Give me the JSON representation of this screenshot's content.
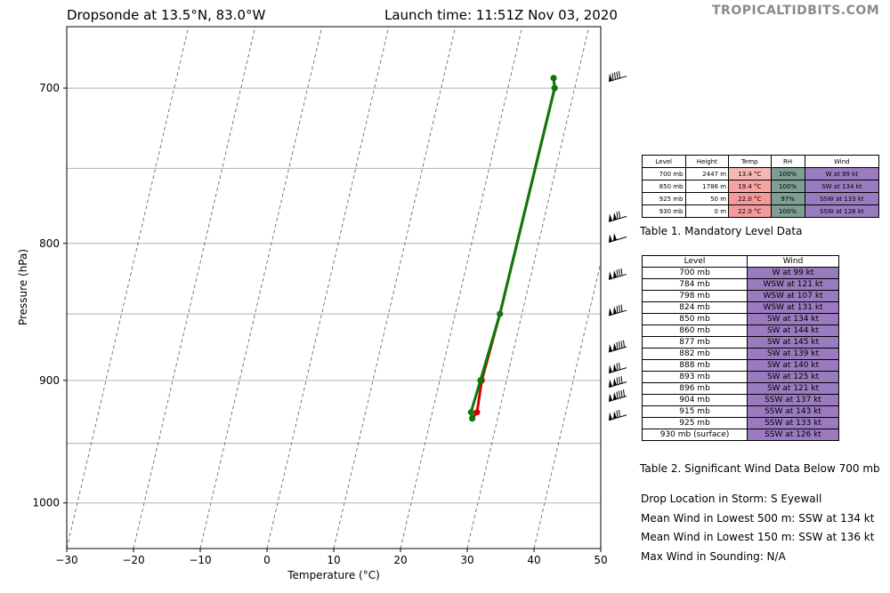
{
  "header": {
    "title_left": "Dropsonde at 13.5°N, 83.0°W",
    "title_right": "Launch time: 11:51Z Nov 03, 2020",
    "brand": "TROPICALTIDBITS.COM"
  },
  "chart_data": {
    "type": "line",
    "xlabel": "Temperature (°C)",
    "ylabel": "Pressure (hPa)",
    "xlim": [
      -30,
      50
    ],
    "ylim": [
      1040,
      664
    ],
    "y_scale": "log",
    "x_ticks": [
      -30,
      -20,
      -10,
      0,
      10,
      20,
      30,
      40,
      50
    ],
    "x_tick_labels": [
      "−30",
      "−20",
      "−10",
      "0",
      "10",
      "20",
      "30",
      "40",
      "50"
    ],
    "y_ticks": [
      700,
      800,
      900,
      1000
    ],
    "y_tick_labels": [
      "700",
      "800",
      "900",
      "1000"
    ],
    "grid_pressure": [
      700,
      750,
      800,
      850,
      900,
      950,
      1000
    ],
    "isotherms_skewed": [
      -30,
      -20,
      -10,
      0,
      10,
      20,
      30,
      40,
      50,
      60,
      70,
      80
    ],
    "series": [
      {
        "color": "#d40000",
        "points": [
          [
            26.5,
            694
          ],
          [
            27.0,
            700
          ],
          [
            26.7,
            850
          ],
          [
            26.3,
            900
          ],
          [
            26.7,
            925
          ],
          [
            26.2,
            930
          ]
        ]
      },
      {
        "color": "#0a7a0a",
        "points": [
          [
            26.5,
            694
          ],
          [
            27.0,
            700
          ],
          [
            26.7,
            850
          ],
          [
            26.1,
            900
          ],
          [
            25.8,
            925
          ],
          [
            26.2,
            930
          ]
        ]
      }
    ],
    "wind_barbs": [
      {
        "pressure": 695,
        "speed": 99
      },
      {
        "pressure": 784,
        "speed": 121
      },
      {
        "pressure": 798,
        "speed": 107
      },
      {
        "pressure": 824,
        "speed": 131
      },
      {
        "pressure": 850,
        "speed": 134
      },
      {
        "pressure": 877,
        "speed": 145
      },
      {
        "pressure": 893,
        "speed": 125
      },
      {
        "pressure": 904,
        "speed": 137
      },
      {
        "pressure": 915,
        "speed": 143
      },
      {
        "pressure": 930,
        "speed": 126
      }
    ]
  },
  "table1": {
    "caption": "Table 1. Mandatory Level Data",
    "headers": [
      "Level",
      "Height",
      "Temp",
      "RH",
      "Wind"
    ],
    "rows": [
      [
        "700 mb",
        "2447 m",
        "13.4 °C",
        "100%",
        "W at 99 kt"
      ],
      [
        "850 mb",
        "1786 m",
        "19.4 °C",
        "100%",
        "SW at 134 kt"
      ],
      [
        "925 mb",
        "50 m",
        "22.0 °C",
        "97%",
        "SSW at 133 kt"
      ],
      [
        "930 mb",
        "0 m",
        "22.0 °C",
        "100%",
        "SSW at 126 kt"
      ]
    ],
    "temp_colors": [
      "#f7b6b6",
      "#f7a3a3",
      "#f59a9a",
      "#f59a9a"
    ],
    "rh_color": "#7d9e94",
    "wind_color": "#9b7bbf"
  },
  "table2": {
    "caption": "Table 2. Significant Wind Data Below 700 mb",
    "headers": [
      "Level",
      "Wind"
    ],
    "rows": [
      [
        "700 mb",
        "W at 99 kt"
      ],
      [
        "784 mb",
        "WSW at 121 kt"
      ],
      [
        "798 mb",
        "WSW at 107 kt"
      ],
      [
        "824 mb",
        "WSW at 131 kt"
      ],
      [
        "850 mb",
        "SW at 134 kt"
      ],
      [
        "860 mb",
        "SW at 144 kt"
      ],
      [
        "877 mb",
        "SW at 145 kt"
      ],
      [
        "882 mb",
        "SW at 139 kt"
      ],
      [
        "888 mb",
        "SW at 140 kt"
      ],
      [
        "893 mb",
        "SW at 125 kt"
      ],
      [
        "896 mb",
        "SW at 121 kt"
      ],
      [
        "904 mb",
        "SSW at 137 kt"
      ],
      [
        "915 mb",
        "SSW at 143 kt"
      ],
      [
        "925 mb",
        "SSW at 133 kt"
      ],
      [
        "930 mb (surface)",
        "SSW at 126 kt"
      ]
    ],
    "wind_color": "#9b7bbf"
  },
  "info": {
    "drop_location": "Drop Location in Storm: S Eyewall",
    "mean_500": "Mean Wind in Lowest 500 m:  SSW at 134 kt",
    "mean_150": "Mean Wind in Lowest 150 m:  SSW at 136 kt",
    "max_wind": "Max Wind in Sounding:  N/A"
  }
}
